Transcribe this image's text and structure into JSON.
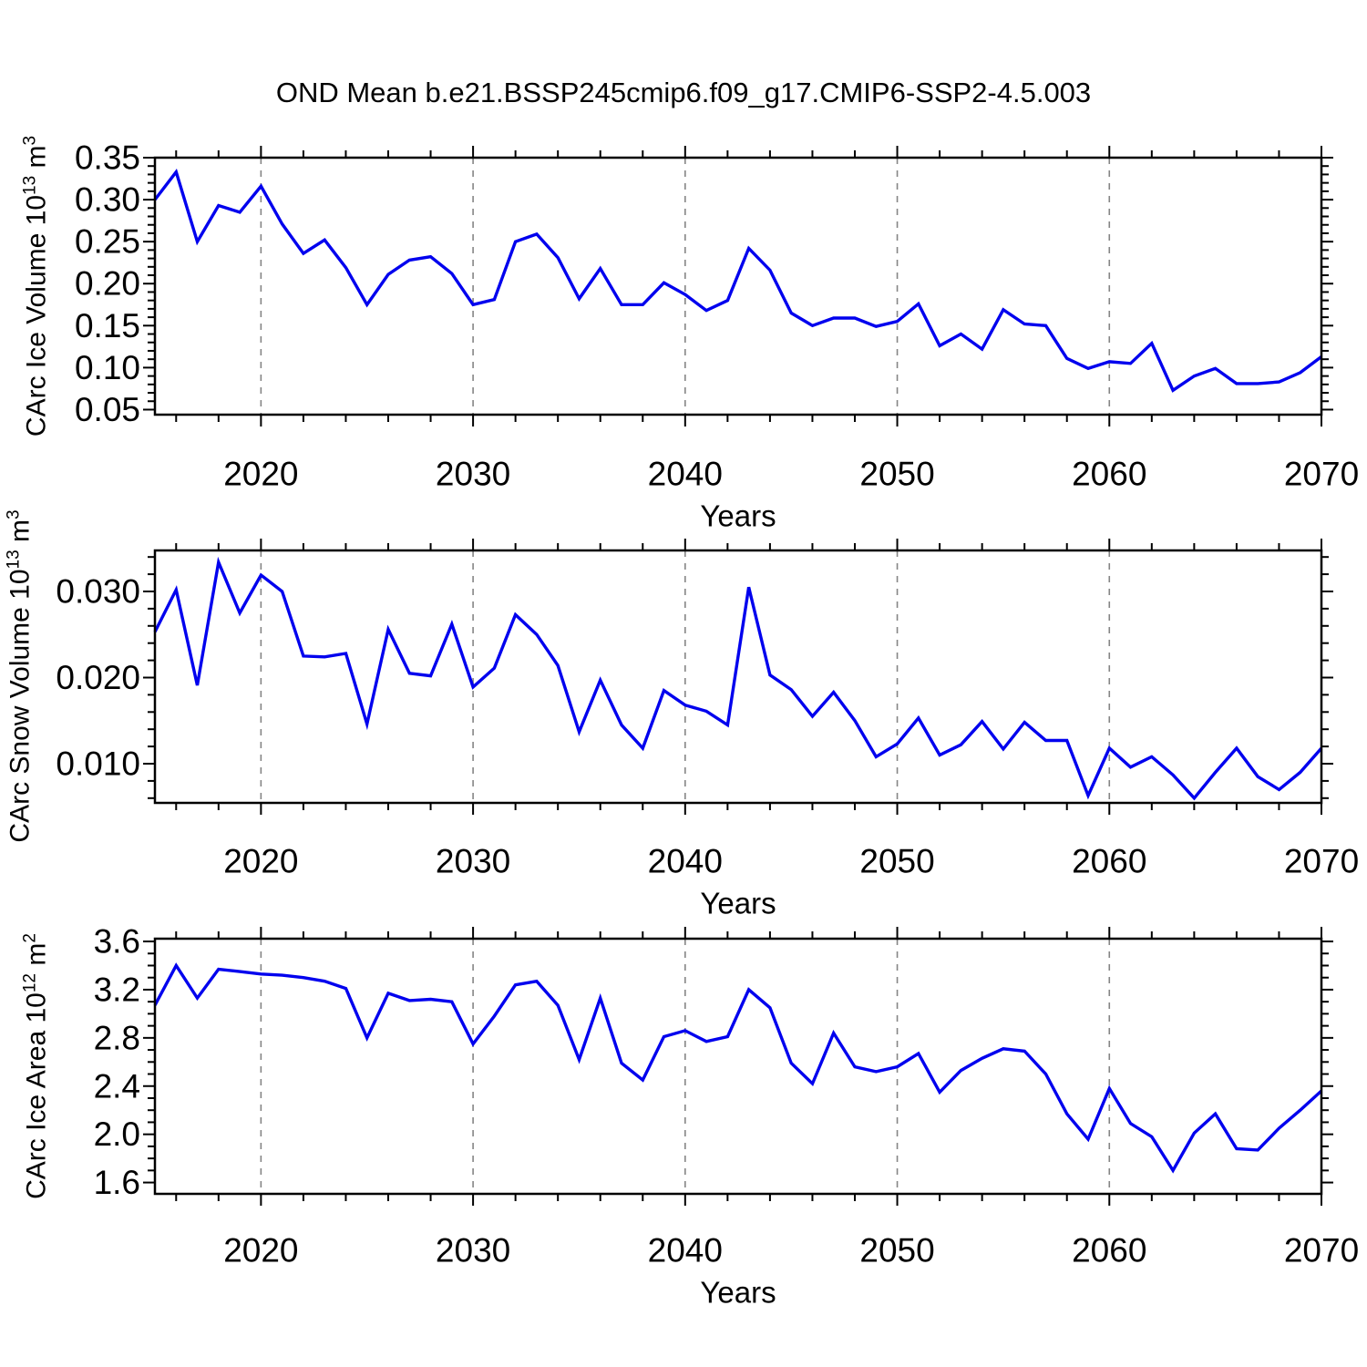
{
  "title": "OND Mean b.e21.BSSP245cmip6.f09_g17.CMIP6-SSP2-4.5.003",
  "colors": {
    "line": "#0000EE",
    "frame": "#000000",
    "gridline": "#858585",
    "text": "#000000",
    "background": "#ffffff"
  },
  "x_axis": {
    "label": "Years",
    "tick_labels": [
      "2020",
      "2030",
      "2040",
      "2050",
      "2060",
      "2070"
    ],
    "tick_years": [
      2020,
      2030,
      2040,
      2050,
      2060,
      2070
    ],
    "gridline_years": [
      2020,
      2030,
      2040,
      2050,
      2060
    ],
    "minor_step": 2,
    "range": [
      2015,
      2070
    ],
    "years": [
      2015,
      2016,
      2017,
      2018,
      2019,
      2020,
      2021,
      2022,
      2023,
      2024,
      2025,
      2026,
      2027,
      2028,
      2029,
      2030,
      2031,
      2032,
      2033,
      2034,
      2035,
      2036,
      2037,
      2038,
      2039,
      2040,
      2041,
      2042,
      2043,
      2044,
      2045,
      2046,
      2047,
      2048,
      2049,
      2050,
      2051,
      2052,
      2053,
      2054,
      2055,
      2056,
      2057,
      2058,
      2059,
      2060,
      2061,
      2062,
      2063,
      2064,
      2065,
      2066,
      2067,
      2068,
      2069,
      2070
    ]
  },
  "chart_data": [
    {
      "type": "line",
      "name": "ice-volume",
      "ylabel": {
        "pre": "CArc Ice Volume 10",
        "sup1": "13",
        "mid": " m",
        "sup2": "3"
      },
      "ylim": [
        0.044,
        0.35
      ],
      "yticks": [
        0.05,
        0.1,
        0.15,
        0.2,
        0.25,
        0.3,
        0.35
      ],
      "ytick_labels": [
        "0.05",
        "0.10",
        "0.15",
        "0.20",
        "0.25",
        "0.30",
        "0.35"
      ],
      "y_minor_step": 0.01,
      "grid": "vertical-dashed",
      "legend": "none",
      "values": [
        0.3,
        0.333,
        0.25,
        0.293,
        0.285,
        0.316,
        0.271,
        0.236,
        0.252,
        0.219,
        0.175,
        0.211,
        0.228,
        0.232,
        0.212,
        0.175,
        0.181,
        0.25,
        0.259,
        0.231,
        0.182,
        0.218,
        0.175,
        0.175,
        0.201,
        0.187,
        0.168,
        0.18,
        0.242,
        0.216,
        0.165,
        0.15,
        0.159,
        0.159,
        0.149,
        0.155,
        0.176,
        0.126,
        0.14,
        0.122,
        0.169,
        0.152,
        0.15,
        0.111,
        0.099,
        0.107,
        0.105,
        0.129,
        0.073,
        0.09,
        0.099,
        0.081,
        0.081,
        0.083,
        0.094,
        0.113
      ]
    },
    {
      "type": "line",
      "name": "snow-volume",
      "ylabel": {
        "pre": "CArc Snow Volume 10",
        "sup1": "13",
        "mid": " m",
        "sup2": "3"
      },
      "ylim": [
        0.00545,
        0.03476
      ],
      "yticks": [
        0.01,
        0.02,
        0.03
      ],
      "ytick_labels": [
        "0.010",
        "0.020",
        "0.030"
      ],
      "y_minor_step": 0.002,
      "grid": "vertical-dashed",
      "legend": "none",
      "values": [
        0.0253,
        0.0302,
        0.0191,
        0.0334,
        0.0275,
        0.0319,
        0.03,
        0.0225,
        0.0224,
        0.0228,
        0.0146,
        0.0256,
        0.0205,
        0.0202,
        0.0262,
        0.0189,
        0.0211,
        0.0273,
        0.025,
        0.0214,
        0.0137,
        0.0197,
        0.0145,
        0.0118,
        0.0185,
        0.0168,
        0.0161,
        0.0145,
        0.0305,
        0.0203,
        0.0186,
        0.0155,
        0.0183,
        0.015,
        0.0108,
        0.0123,
        0.0153,
        0.011,
        0.0122,
        0.0149,
        0.0117,
        0.0148,
        0.0127,
        0.0127,
        0.0063,
        0.0118,
        0.0096,
        0.0108,
        0.0087,
        0.006,
        0.009,
        0.0118,
        0.0085,
        0.007,
        0.009,
        0.0118
      ]
    },
    {
      "type": "line",
      "name": "ice-area",
      "ylabel": {
        "pre": "CArc Ice Area 10",
        "sup1": "12",
        "mid": " m",
        "sup2": "2"
      },
      "ylim": [
        1.506,
        3.623
      ],
      "yticks": [
        1.6,
        2.0,
        2.4,
        2.8,
        3.2,
        3.6
      ],
      "ytick_labels": [
        "1.6",
        "2.0",
        "2.4",
        "2.8",
        "3.2",
        "3.6"
      ],
      "y_minor_step": 0.1,
      "grid": "vertical-dashed",
      "legend": "none",
      "values": [
        3.07,
        3.4,
        3.13,
        3.37,
        3.35,
        3.33,
        3.32,
        3.3,
        3.27,
        3.21,
        2.8,
        3.17,
        3.11,
        3.12,
        3.1,
        2.75,
        2.98,
        3.24,
        3.27,
        3.07,
        2.62,
        3.13,
        2.59,
        2.45,
        2.81,
        2.86,
        2.77,
        2.81,
        3.2,
        3.05,
        2.59,
        2.42,
        2.84,
        2.56,
        2.52,
        2.56,
        2.67,
        2.35,
        2.53,
        2.63,
        2.71,
        2.69,
        2.5,
        2.17,
        1.96,
        2.38,
        2.09,
        1.98,
        1.7,
        2.01,
        2.17,
        1.88,
        1.87,
        2.05,
        2.2,
        2.36
      ]
    }
  ]
}
